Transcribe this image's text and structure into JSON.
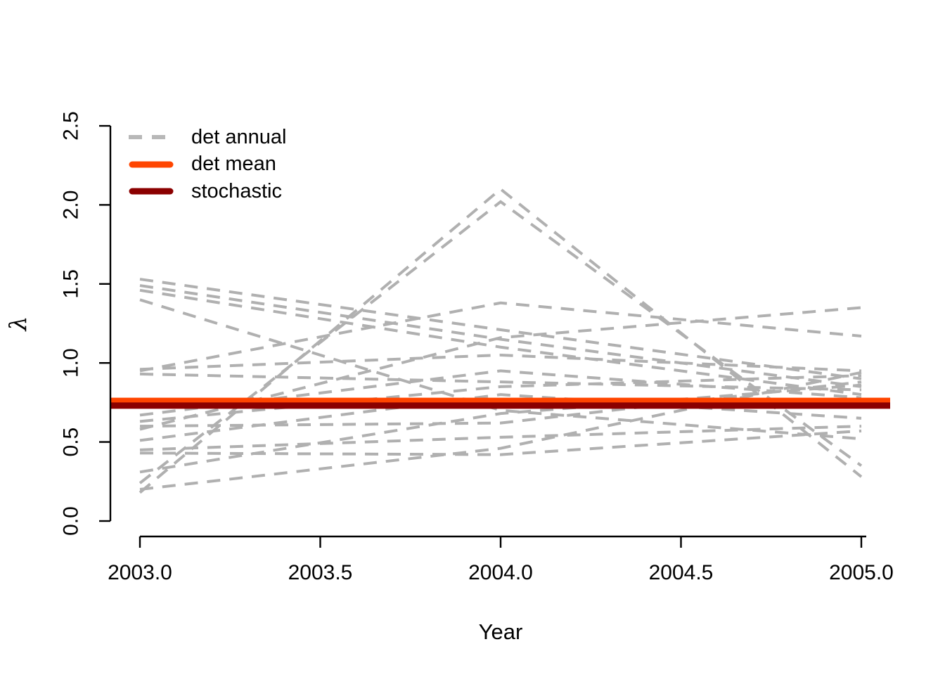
{
  "chart_data": {
    "type": "line",
    "title": "",
    "xlabel": "Year",
    "ylabel": "λ",
    "xlim": [
      2003,
      2005
    ],
    "ylim": [
      0.0,
      2.5
    ],
    "grid": false,
    "x": [
      2003,
      2004,
      2005
    ],
    "x_tick_labels": [
      "2003.0",
      "2003.5",
      "2004.0",
      "2004.5",
      "2005.0"
    ],
    "x_tick_values": [
      2003.0,
      2003.5,
      2004.0,
      2004.5,
      2005.0
    ],
    "y_tick_labels": [
      "0.0",
      "0.5",
      "1.0",
      "1.5",
      "2.0",
      "2.5"
    ],
    "y_tick_values": [
      0.0,
      0.5,
      1.0,
      1.5,
      2.0,
      2.5
    ],
    "colors": {
      "det_annual": "#B0B0B0",
      "det_mean": "#FF4500",
      "stochastic": "#8B0000",
      "axis": "#000000"
    },
    "series": [
      {
        "name": "det annual",
        "type": "multi-line",
        "style": "dashed",
        "color": "#B0B0B0",
        "lines": [
          [
            0.18,
            2.1,
            0.28
          ],
          [
            0.24,
            2.02,
            0.35
          ],
          [
            0.95,
            1.38,
            1.17
          ],
          [
            0.58,
            1.16,
            1.35
          ],
          [
            1.53,
            1.21,
            0.9
          ],
          [
            1.49,
            1.15,
            0.85
          ],
          [
            1.46,
            1.1,
            0.8
          ],
          [
            1.4,
            0.7,
            0.52
          ],
          [
            0.96,
            1.05,
            0.95
          ],
          [
            0.93,
            0.88,
            0.83
          ],
          [
            0.67,
            0.95,
            0.78
          ],
          [
            0.63,
            0.85,
            0.92
          ],
          [
            0.6,
            0.62,
            0.88
          ],
          [
            0.51,
            0.8,
            0.65
          ],
          [
            0.45,
            0.53,
            0.6
          ],
          [
            0.43,
            0.42,
            0.57
          ],
          [
            0.31,
            0.68,
            0.86
          ],
          [
            0.2,
            0.46,
            0.94
          ]
        ]
      },
      {
        "name": "det mean",
        "type": "hline",
        "style": "solid-thick",
        "color": "#FF4500",
        "value": 0.76
      },
      {
        "name": "stochastic",
        "type": "hline",
        "style": "solid-thick",
        "color": "#8B0000",
        "value": 0.73
      }
    ],
    "legend": {
      "position": "top-left",
      "entries": [
        {
          "label": "det annual",
          "color": "#B8B8B8",
          "dashed": true
        },
        {
          "label": "det mean",
          "color": "#FF4500",
          "dashed": false
        },
        {
          "label": "stochastic",
          "color": "#8B0000",
          "dashed": false
        }
      ]
    }
  }
}
